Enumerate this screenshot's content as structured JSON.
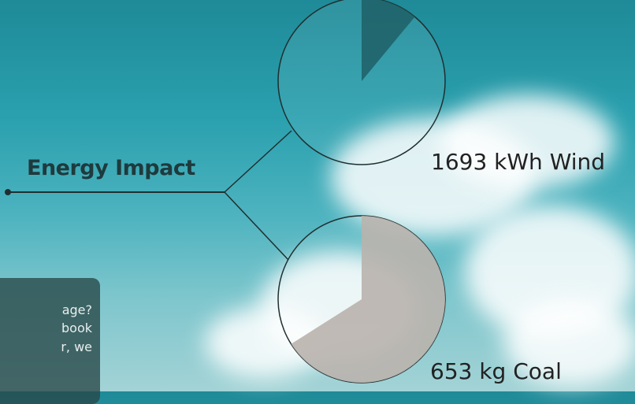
{
  "title": "Energy Impact",
  "chart_data": {
    "type": "pie",
    "charts": [
      {
        "label": "1693 kWh Wind",
        "value": 1693,
        "unit": "kWh",
        "source": "Wind",
        "filled_fraction": 0.11
      },
      {
        "label": "653 kg Coal",
        "value": 653,
        "unit": "kg",
        "source": "Coal",
        "filled_fraction": 0.66
      }
    ]
  },
  "info_box": {
    "lines": [
      "age?",
      "book",
      "r, we"
    ]
  },
  "colors": {
    "wind_slice": "#1f5f66",
    "coal_slice": "#b9b3ad",
    "line": "#1f2f30"
  }
}
